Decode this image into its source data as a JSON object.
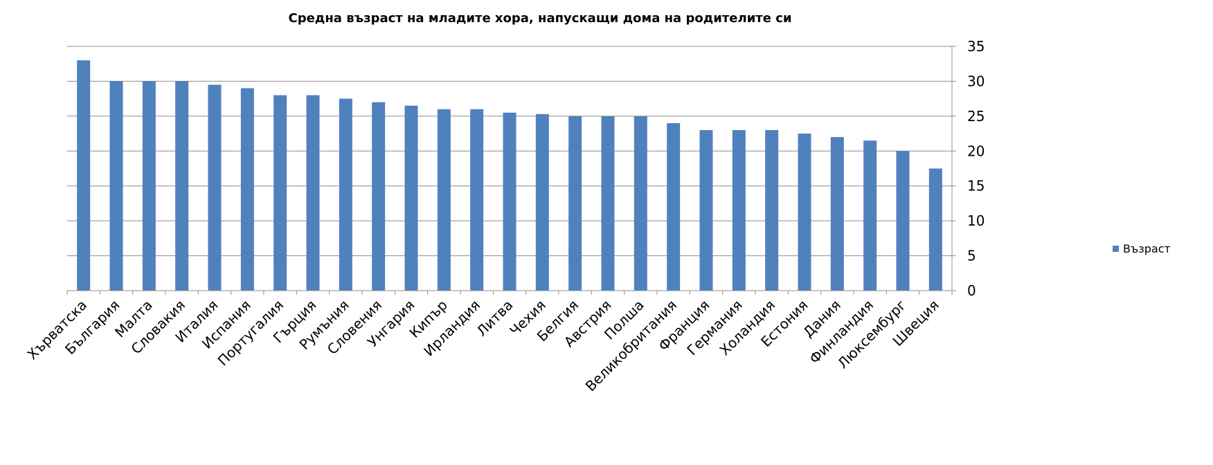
{
  "chart_data": {
    "type": "bar",
    "title": "Средна възраст на младите хора, напускащи дома на родителите си",
    "xlabel": "",
    "ylabel": "",
    "ylim": [
      0,
      35
    ],
    "yticks": [
      0,
      5,
      10,
      15,
      20,
      25,
      30,
      35
    ],
    "y_axis_side": "right",
    "grid": true,
    "legend_position": "right",
    "categories": [
      "Хърватска",
      "България",
      "Малта",
      "Словакия",
      "Италия",
      "Испания",
      "Португалия",
      "Гърция",
      "Румъния",
      "Словения",
      "Унгария",
      "Кипър",
      "Ирландия",
      "Литва",
      "Чехия",
      "Белгия",
      "Австрия",
      "Полша",
      "Великобритания",
      "Франция",
      "Германия",
      "Холандия",
      "Естония",
      "Дания",
      "Финландия",
      "Люксембург",
      "Швеция"
    ],
    "series": [
      {
        "name": "Възраст",
        "color": "#4F81BD",
        "values": [
          33,
          30,
          30,
          30,
          29.5,
          29,
          28,
          28,
          27.5,
          27,
          26.5,
          26,
          26,
          25.5,
          25.3,
          25,
          25,
          25,
          24,
          23,
          23,
          23,
          22.5,
          22,
          21.5,
          20,
          17.5
        ]
      }
    ]
  }
}
